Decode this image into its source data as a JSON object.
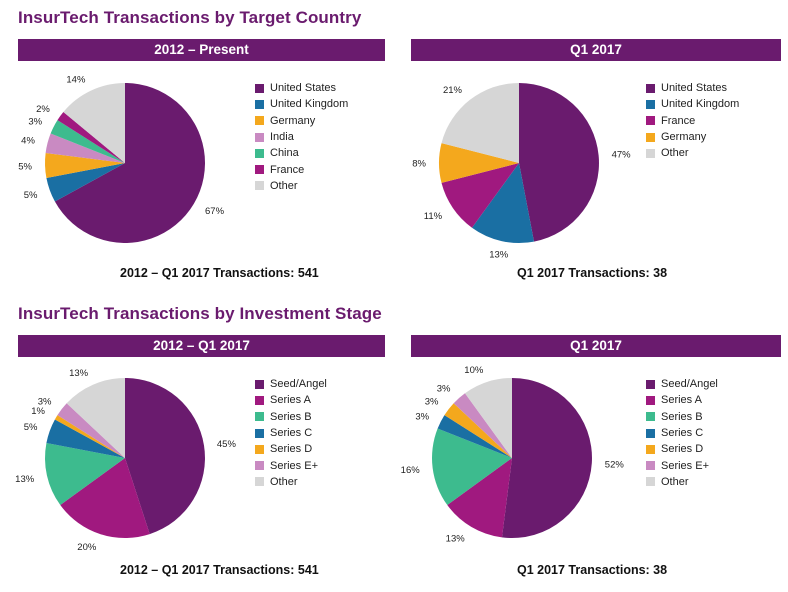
{
  "titles": {
    "country": "InsurTech Transactions by Target Country",
    "stage": "InsurTech Transactions by Investment Stage"
  },
  "panels": {
    "country_all": {
      "header": "2012 – Present",
      "footer": "2012 – Q1 2017 Transactions: 541"
    },
    "country_q1": {
      "header": "Q1 2017",
      "footer": "Q1 2017 Transactions: 38"
    },
    "stage_all": {
      "header": "2012 – Q1 2017",
      "footer": "2012 – Q1 2017 Transactions: 541"
    },
    "stage_q1": {
      "header": "Q1 2017",
      "footer": "Q1 2017 Transactions: 38"
    }
  },
  "chart_data": [
    {
      "id": "country_all",
      "type": "pie",
      "title": "2012 – Present",
      "categories": [
        "United States",
        "United Kingdom",
        "Germany",
        "India",
        "China",
        "France",
        "Other"
      ],
      "values": [
        67,
        5,
        5,
        4,
        3,
        2,
        14
      ],
      "labels": [
        "67%",
        "5%",
        "5%",
        "4%",
        "3%",
        "2%",
        "14%"
      ],
      "colors": [
        "#6a1b6e",
        "#1a6fa3",
        "#f4a81d",
        "#c98ac2",
        "#3dbb8e",
        "#a0197f",
        "#d6d6d6"
      ]
    },
    {
      "id": "country_q1",
      "type": "pie",
      "title": "Q1 2017",
      "categories": [
        "United States",
        "United Kingdom",
        "France",
        "Germany",
        "Other"
      ],
      "values": [
        47,
        13,
        11,
        8,
        21
      ],
      "labels": [
        "47%",
        "13%",
        "11%",
        "8%",
        "21%"
      ],
      "colors": [
        "#6a1b6e",
        "#1a6fa3",
        "#a0197f",
        "#f4a81d",
        "#d6d6d6"
      ]
    },
    {
      "id": "stage_all",
      "type": "pie",
      "title": "2012 – Q1 2017",
      "categories": [
        "Seed/Angel",
        "Series A",
        "Series B",
        "Series C",
        "Series D",
        "Series E+",
        "Other"
      ],
      "values": [
        45,
        20,
        13,
        5,
        1,
        3,
        13
      ],
      "labels": [
        "45%",
        "20%",
        "13%",
        "5%",
        "1%",
        "3%",
        "13%"
      ],
      "colors": [
        "#6a1b6e",
        "#a0197f",
        "#3dbb8e",
        "#1a6fa3",
        "#f4a81d",
        "#c98ac2",
        "#d6d6d6"
      ]
    },
    {
      "id": "stage_q1",
      "type": "pie",
      "title": "Q1 2017",
      "categories": [
        "Seed/Angel",
        "Series A",
        "Series B",
        "Series C",
        "Series D",
        "Series E+",
        "Other"
      ],
      "values": [
        52,
        13,
        16,
        3,
        3,
        3,
        10
      ],
      "labels": [
        "52%",
        "13%",
        "16%",
        "3%",
        "3%",
        "3%",
        "10%"
      ],
      "colors": [
        "#6a1b6e",
        "#a0197f",
        "#3dbb8e",
        "#1a6fa3",
        "#f4a81d",
        "#c98ac2",
        "#d6d6d6"
      ]
    }
  ]
}
